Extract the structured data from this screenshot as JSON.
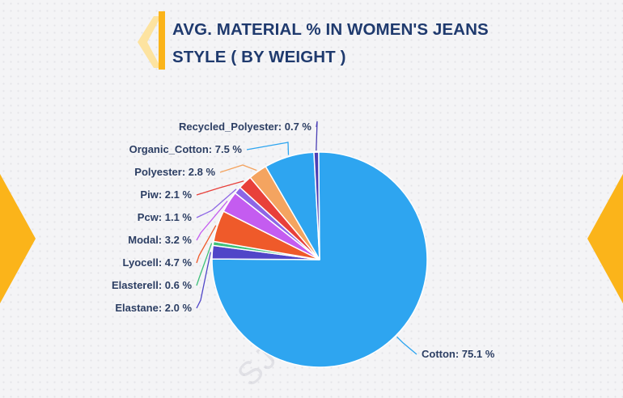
{
  "header": {
    "title_line1": "AVG. MATERIAL % IN WOMEN'S JEANS",
    "title_line2": "STYLE ( BY WEIGHT )"
  },
  "watermark": {
    "text": "SJ Reports"
  },
  "colors": {
    "title": "#1f3a6e",
    "accent_yellow": "#fbb41a",
    "label_text": "#2c3e63"
  },
  "chart_data": {
    "type": "pie",
    "title": "AVG. MATERIAL % IN WOMEN'S JEANS STYLE ( BY WEIGHT )",
    "unit": "%",
    "slices": [
      {
        "name": "Cotton",
        "value": 75.1,
        "color": "#2ea5f0",
        "label": "Cotton: 75.1 %"
      },
      {
        "name": "Elastane",
        "value": 2.0,
        "color": "#5046c8",
        "label": "Elastane: 2.0 %"
      },
      {
        "name": "Elasterell",
        "value": 0.6,
        "color": "#3ec07a",
        "label": "Elasterell: 0.6 %"
      },
      {
        "name": "Lyocell",
        "value": 4.7,
        "color": "#ef5a2a",
        "label": "Lyocell: 4.7 %"
      },
      {
        "name": "Modal",
        "value": 3.2,
        "color": "#c45cf0",
        "label": "Modal: 3.2 %"
      },
      {
        "name": "Pcw",
        "value": 1.1,
        "color": "#8d66e6",
        "label": "Pcw: 1.1 %"
      },
      {
        "name": "Piw",
        "value": 2.1,
        "color": "#e8403a",
        "label": "Piw: 2.1 %"
      },
      {
        "name": "Polyester",
        "value": 2.8,
        "color": "#f4a460",
        "label": "Polyester: 2.8 %"
      },
      {
        "name": "Organic_Cotton",
        "value": 7.5,
        "color": "#2ea5f0",
        "label": "Organic_Cotton: 7.5 %"
      },
      {
        "name": "Recycled_Polyester",
        "value": 0.7,
        "color": "#4b3fb5",
        "label": "Recycled_Polyester: 0.7 %"
      }
    ]
  }
}
